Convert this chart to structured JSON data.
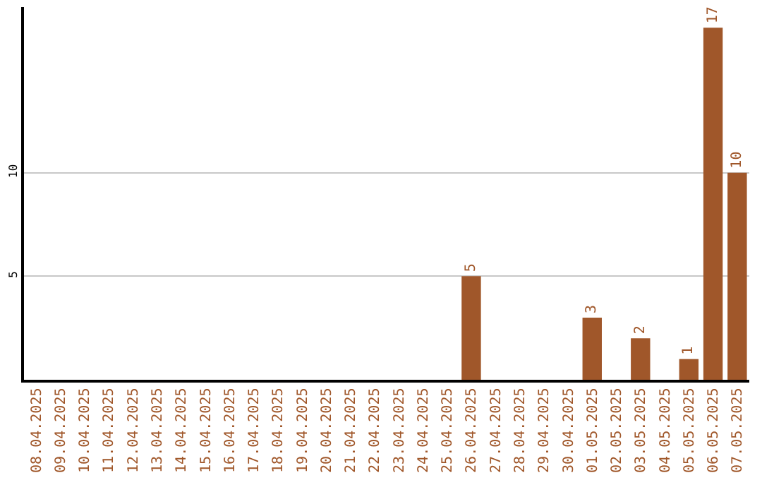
{
  "chart_data": {
    "type": "bar",
    "categories": [
      "08.04.2025",
      "09.04.2025",
      "10.04.2025",
      "11.04.2025",
      "12.04.2025",
      "13.04.2025",
      "14.04.2025",
      "15.04.2025",
      "16.04.2025",
      "17.04.2025",
      "18.04.2025",
      "19.04.2025",
      "20.04.2025",
      "21.04.2025",
      "22.04.2025",
      "23.04.2025",
      "24.04.2025",
      "25.04.2025",
      "26.04.2025",
      "27.04.2025",
      "28.04.2025",
      "29.04.2025",
      "30.04.2025",
      "01.05.2025",
      "02.05.2025",
      "03.05.2025",
      "04.05.2025",
      "05.05.2025",
      "06.05.2025",
      "07.05.2025"
    ],
    "values": [
      0,
      0,
      0,
      0,
      0,
      0,
      0,
      0,
      0,
      0,
      0,
      0,
      0,
      0,
      0,
      0,
      0,
      0,
      5,
      0,
      0,
      0,
      0,
      3,
      0,
      2,
      0,
      1,
      17,
      10
    ],
    "value_labels": [
      null,
      null,
      null,
      null,
      null,
      null,
      null,
      null,
      null,
      null,
      null,
      null,
      null,
      null,
      null,
      null,
      null,
      null,
      "5",
      null,
      null,
      null,
      null,
      "3",
      null,
      "2",
      null,
      "1",
      "17",
      "10"
    ],
    "color": "#a0572a",
    "ylim": [
      0,
      18
    ],
    "yticks": [
      5,
      10
    ],
    "grid": "y",
    "legend": false
  }
}
